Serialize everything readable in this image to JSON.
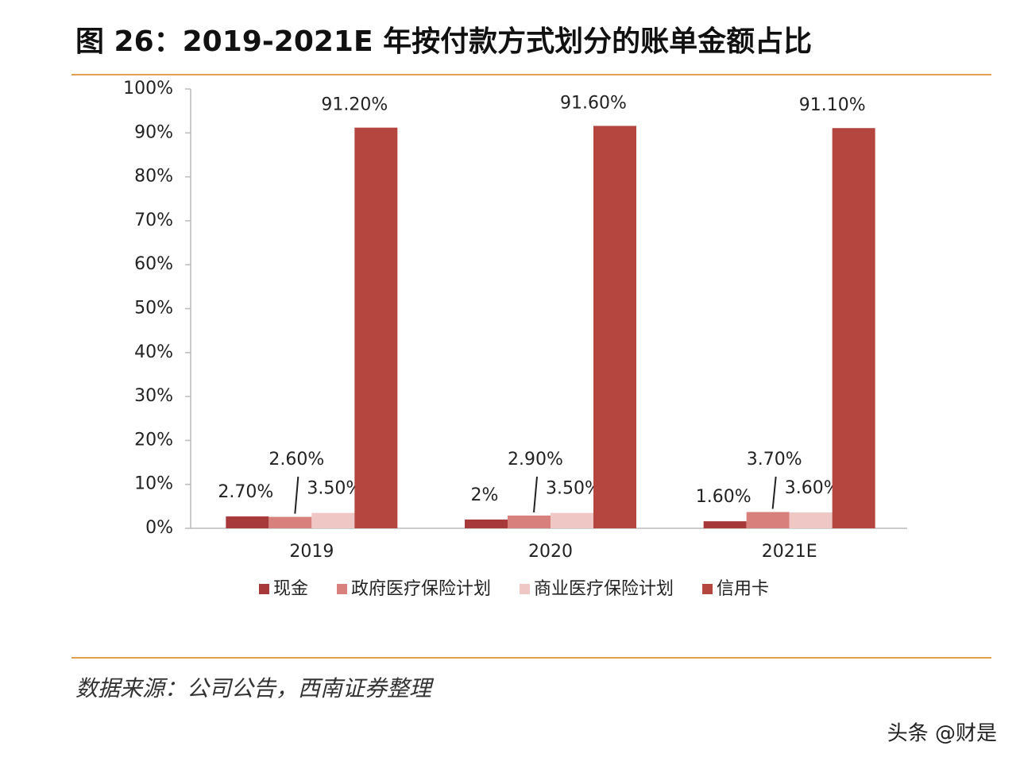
{
  "chart_data": {
    "type": "bar",
    "title": "图 26：2019-2021E 年按付款方式划分的账单金额占比",
    "categories": [
      "2019",
      "2020",
      "2021E"
    ],
    "series": [
      {
        "name": "现金",
        "color": "#a8393a",
        "values": [
          2.7,
          2,
          1.6
        ],
        "value_labels": [
          "2.70%",
          "2%",
          "1.60%"
        ]
      },
      {
        "name": "政府医疗保险计划",
        "color": "#d7807c",
        "values": [
          2.6,
          2.9,
          3.7
        ],
        "value_labels": [
          "2.60%",
          "2.90%",
          "3.70%"
        ]
      },
      {
        "name": "商业医疗保险计划",
        "color": "#efc7c4",
        "values": [
          3.5,
          3.5,
          3.6
        ],
        "value_labels": [
          "3.50%",
          "3.50%",
          "3.60%"
        ]
      },
      {
        "name": "信用卡",
        "color": "#b4463f",
        "values": [
          91.2,
          91.6,
          91.1
        ],
        "value_labels": [
          "91.20%",
          "91.60%",
          "91.10%"
        ]
      }
    ],
    "ylim": [
      0,
      100
    ],
    "yticks": [
      {
        "value": 0,
        "label": "0%"
      },
      {
        "value": 10,
        "label": "10%"
      },
      {
        "value": 20,
        "label": "20%"
      },
      {
        "value": 30,
        "label": "30%"
      },
      {
        "value": 40,
        "label": "40%"
      },
      {
        "value": 50,
        "label": "50%"
      },
      {
        "value": 60,
        "label": "60%"
      },
      {
        "value": 70,
        "label": "70%"
      },
      {
        "value": 80,
        "label": "80%"
      },
      {
        "value": 90,
        "label": "90%"
      },
      {
        "value": 100,
        "label": "100%"
      }
    ],
    "source": "数据来源：公司公告，西南证券整理",
    "watermark": "头条 @财是"
  }
}
